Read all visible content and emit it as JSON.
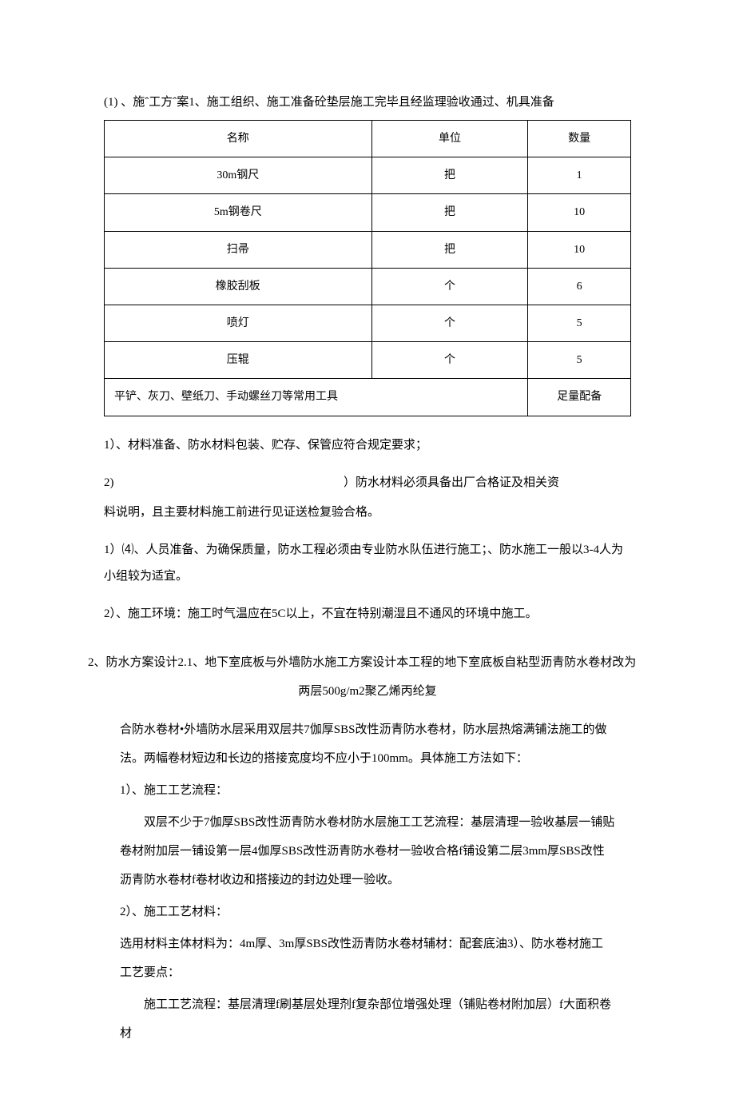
{
  "intro": "(1)    、施ˆ工方ˆ案1、施工组织、施工准备砼垫层施工完毕且经监理验收通过、机具准备",
  "table": {
    "headers": [
      "名称",
      "单位",
      "数量"
    ],
    "rows": [
      [
        "30m钢尺",
        "把",
        "1"
      ],
      [
        "5m钢卷尺",
        "把",
        "10"
      ],
      [
        "扫帚",
        "把",
        "10"
      ],
      [
        "橡胶刮板",
        "个",
        "6"
      ],
      [
        "喷灯",
        "个",
        "5"
      ],
      [
        "压辊",
        "个",
        "5"
      ]
    ],
    "lastRow": {
      "merged": "平铲、灰刀、壁纸刀、手动螺丝刀等常用工具",
      "qty": "足量配备"
    }
  },
  "p1": "1）、材料准备、防水材料包装、贮存、保管应符合规定要求；",
  "p2a": "2)",
  "p2b": "）防水材料必须具备出厂合格证及相关资",
  "p2c": "料说明，且主要材料施工前进行见证送检复验合格。",
  "p3": "1）⑷、人员准备、为确保质量，防水工程必须由专业防水队伍进行施工；、防水施工一般以3-4人为小组较为适宜。",
  "p4": "2）、施工环境：施工时气温应在5C以上，不宜在特别潮湿且不通风的环境中施工。",
  "s2_title": "2、防水方案设计2.1、地下室底板与外墙防水施工方案设计本工程的地下室底板自粘型沥青防水卷材改为",
  "s2_sub": "两层500g/m2聚乙烯丙纶复",
  "b1": "合防水卷材•外墙防水层采用双层共7伽厚SBS改性沥青防水卷材，防水层热熔满铺法施工的做法。两幅卷材短边和长边的搭接宽度均不应小于100mm。具体施工方法如下：",
  "b2": "1）、施工工艺流程：",
  "b3": "双层不少于7伽厚SBS改性沥青防水卷材防水层施工工艺流程：基层清理一验收基层一铺贴卷材附加层一铺设第一层4伽厚SBS改性沥青防水卷材一验收合格f铺设第二层3mm厚SBS改性沥青防水卷材f卷材收边和搭接边的封边处理一验收。",
  "b4": "2）、施工工艺材料：",
  "b5": "选用材料主体材料为：4m厚、3m厚SBS改性沥青防水卷材辅材：配套底油3）、防水卷材施工工艺要点：",
  "b6": "施工工艺流程：基层清理f刷基层处理剂f复杂部位增强处理（铺贴卷材附加层）f大面积卷材"
}
